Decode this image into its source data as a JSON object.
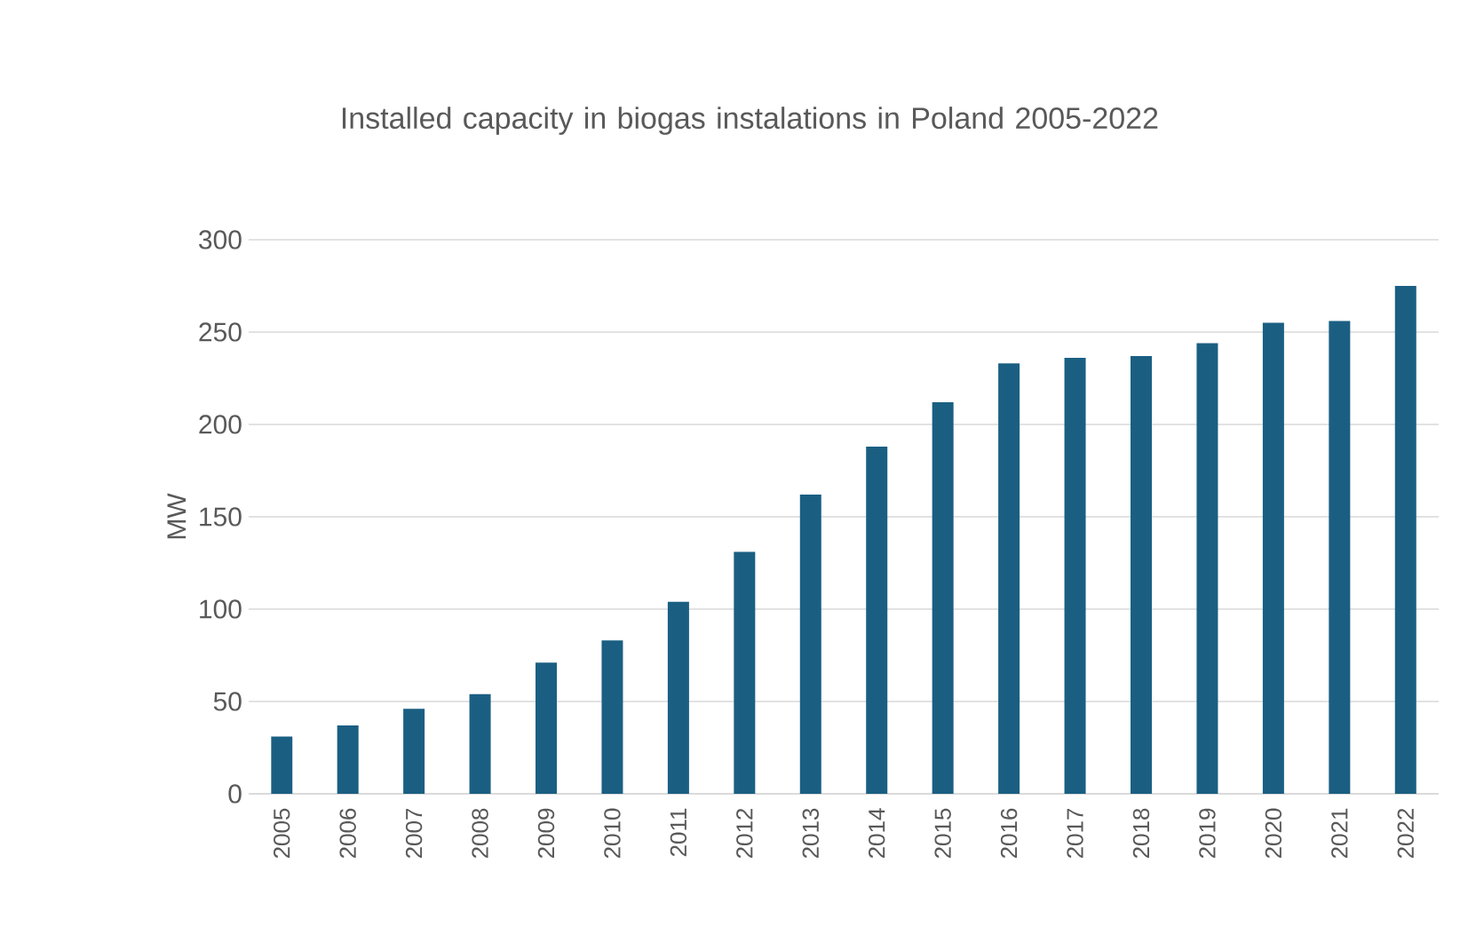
{
  "chart_data": {
    "type": "bar",
    "title": "Installed capacity in biogas instalations in Poland 2005-2022",
    "ylabel": "MW",
    "categories": [
      "2005",
      "2006",
      "2007",
      "2008",
      "2009",
      "2010",
      "2011",
      "2012",
      "2013",
      "2014",
      "2015",
      "2016",
      "2017",
      "2018",
      "2019",
      "2020",
      "2021",
      "2022"
    ],
    "values": [
      31,
      37,
      46,
      54,
      71,
      83,
      104,
      131,
      162,
      188,
      212,
      233,
      236,
      237,
      244,
      255,
      256,
      275
    ],
    "color": "#1a5f82",
    "ylim": [
      0,
      300
    ],
    "yticks": [
      0,
      50,
      100,
      150,
      200,
      250,
      300
    ],
    "grid": "y"
  }
}
